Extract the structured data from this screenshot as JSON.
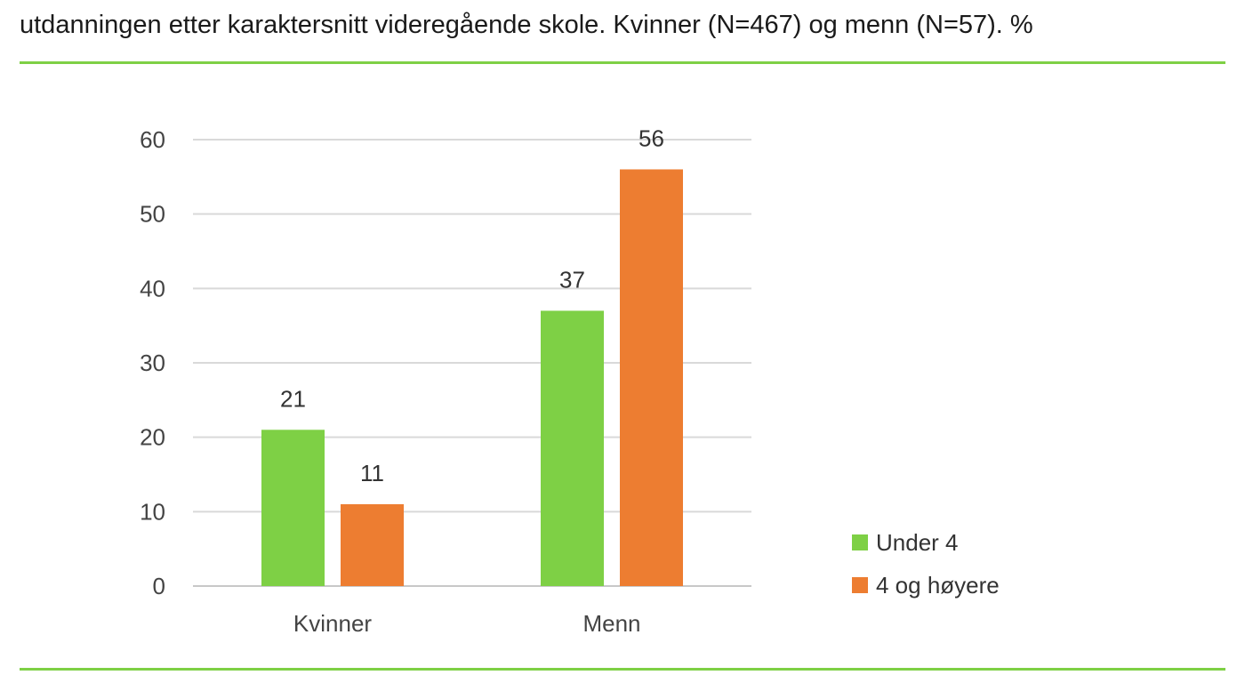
{
  "title_line": "utdanningen etter karaktersnitt videregående skole. Kvinner (N=467) og menn (N=57). %",
  "chart_data": {
    "type": "bar",
    "categories": [
      "Kvinner",
      "Menn"
    ],
    "series": [
      {
        "name": "Under 4",
        "values": [
          21,
          37
        ],
        "color": "#7ed045"
      },
      {
        "name": "4 og høyere",
        "values": [
          11,
          56
        ],
        "color": "#ed7d31"
      }
    ],
    "ylim": [
      0,
      60
    ],
    "yticks": [
      0,
      10,
      20,
      30,
      40,
      50,
      60
    ],
    "grid": true,
    "legend_position": "bottom-right",
    "data_labels": true
  }
}
